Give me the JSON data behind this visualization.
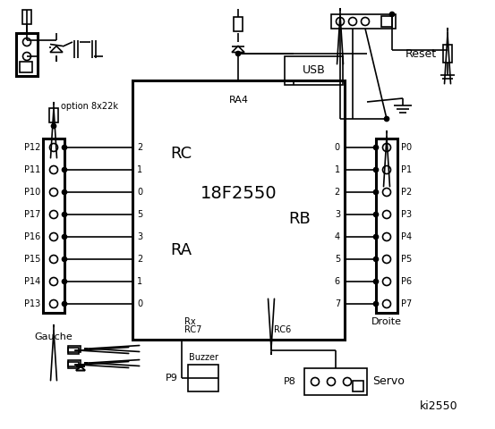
{
  "title": "ki2550",
  "bg_color": "#ffffff",
  "fg_color": "#000000",
  "chip_label": "18F2550",
  "chip_sublabel": "RA4",
  "rc_label": "RC",
  "ra_label": "RA",
  "rb_label": "RB",
  "rc_pins_nums": [
    "2",
    "1",
    "0",
    "5",
    "3",
    "2",
    "1",
    "0"
  ],
  "rb_pins_nums": [
    "0",
    "1",
    "2",
    "3",
    "4",
    "5",
    "6",
    "7"
  ],
  "left_labels": [
    "P12",
    "P11",
    "P10",
    "P17",
    "P16",
    "P15",
    "P14",
    "P13"
  ],
  "right_labels": [
    "P0",
    "P1",
    "P2",
    "P3",
    "P4",
    "P5",
    "P6",
    "P7"
  ],
  "gauche": "Gauche",
  "droite": "Droite",
  "buzzer": "Buzzer",
  "servo": "Servo",
  "usb": "USB",
  "reset": "Reset",
  "option": "option 8x22k",
  "p9": "P9",
  "p8": "P8"
}
